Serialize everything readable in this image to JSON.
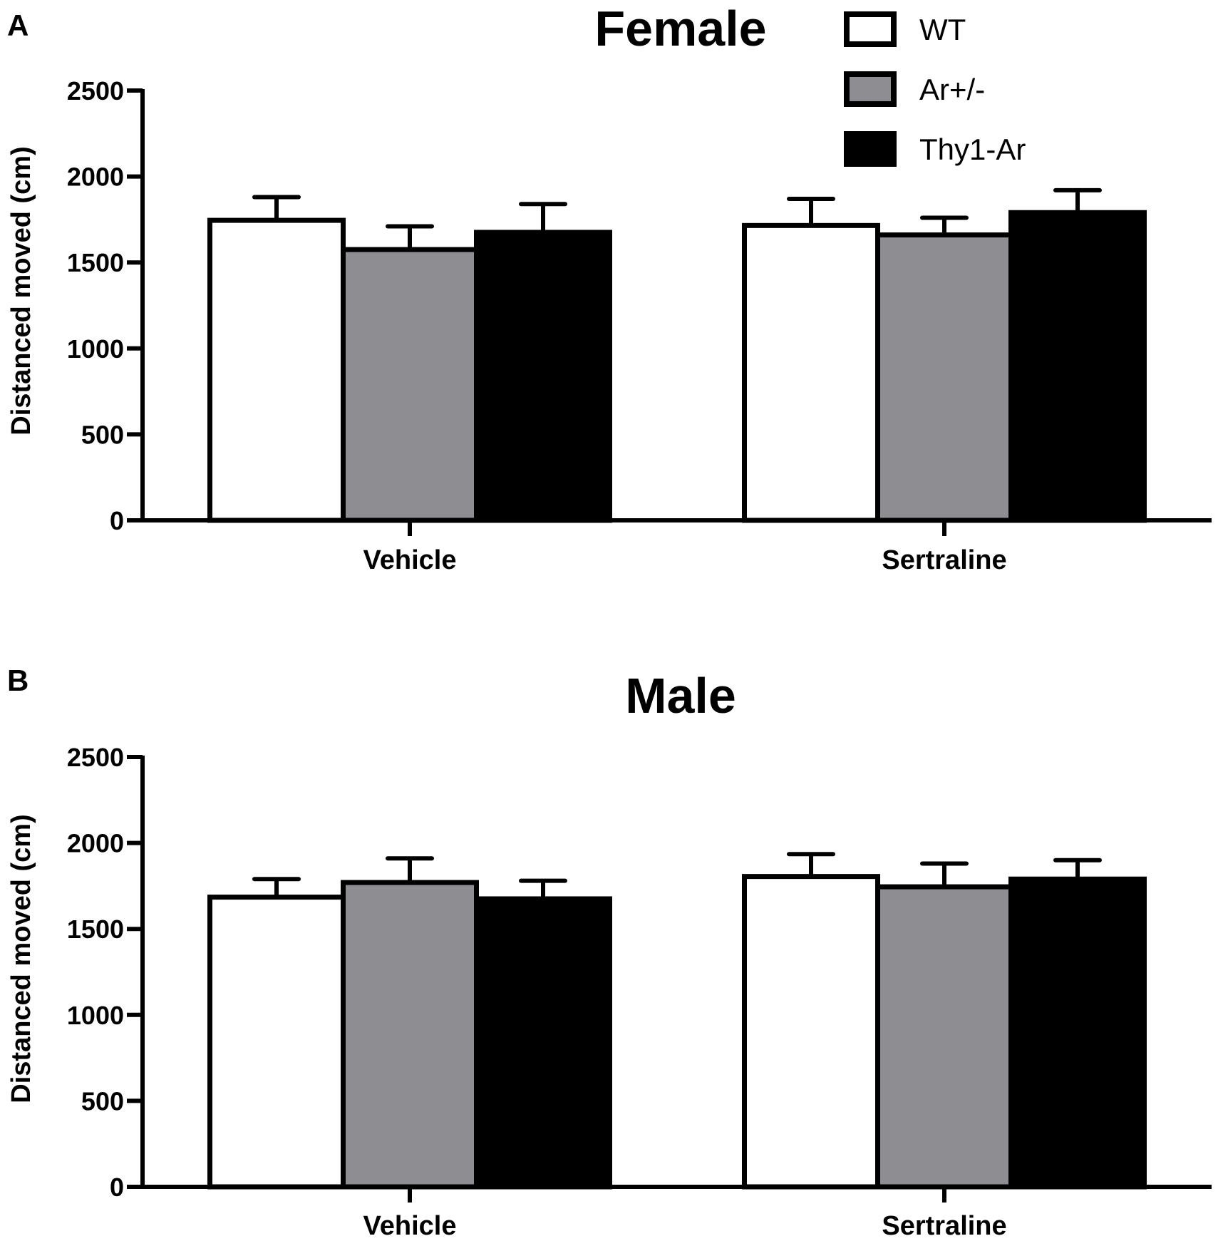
{
  "legend": {
    "items": [
      {
        "name": "WT",
        "fill": "#ffffff"
      },
      {
        "name": "Ar+/-",
        "fill": "#8e8d92"
      },
      {
        "name": "Thy1-Ar",
        "fill": "#000000"
      }
    ]
  },
  "chart_data": [
    {
      "panel": "A",
      "type": "bar",
      "title": "Female",
      "xlabel": "",
      "ylabel": "Distanced moved (cm)",
      "ylim": [
        0,
        2500
      ],
      "yticks": [
        "0",
        "500",
        "1000",
        "1500",
        "2000",
        "2500"
      ],
      "categories": [
        "Vehicle",
        "Sertraline"
      ],
      "error_bars": "upper only (SEM)",
      "series": [
        {
          "name": "WT",
          "color": "#ffffff",
          "values": [
            1745,
            1715
          ],
          "errors": [
            135,
            155
          ]
        },
        {
          "name": "Ar+/-",
          "color": "#8e8d92",
          "values": [
            1575,
            1660
          ],
          "errors": [
            135,
            100
          ]
        },
        {
          "name": "Thy1-Ar",
          "color": "#000000",
          "values": [
            1675,
            1790
          ],
          "errors": [
            165,
            130
          ]
        }
      ]
    },
    {
      "panel": "B",
      "type": "bar",
      "title": "Male",
      "xlabel": "",
      "ylabel": "Distanced moved (cm)",
      "ylim": [
        0,
        2500
      ],
      "yticks": [
        "0",
        "500",
        "1000",
        "1500",
        "2000",
        "2500"
      ],
      "categories": [
        "Vehicle",
        "Sertraline"
      ],
      "error_bars": "upper only (SEM)",
      "series": [
        {
          "name": "WT",
          "color": "#ffffff",
          "values": [
            1685,
            1805
          ],
          "errors": [
            105,
            130
          ]
        },
        {
          "name": "Ar+/-",
          "color": "#8e8d92",
          "values": [
            1770,
            1745
          ],
          "errors": [
            140,
            135
          ]
        },
        {
          "name": "Thy1-Ar",
          "color": "#000000",
          "values": [
            1675,
            1790
          ],
          "errors": [
            105,
            110
          ]
        }
      ]
    }
  ]
}
